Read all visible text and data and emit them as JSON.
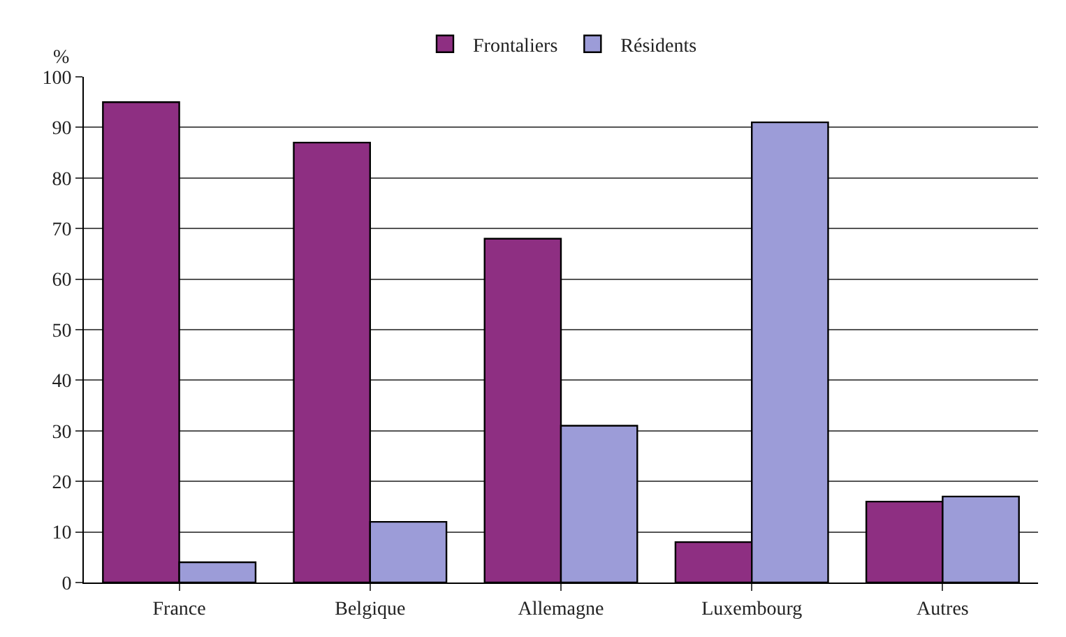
{
  "chart_data": {
    "type": "bar",
    "ylabel": "%",
    "categories": [
      "France",
      "Belgique",
      "Allemagne",
      "Luxembourg",
      "Autres"
    ],
    "series": [
      {
        "name": "Frontaliers",
        "color": "#8e2f82",
        "values": [
          95,
          87,
          68,
          8,
          16
        ]
      },
      {
        "name": "Résidents",
        "color": "#9c9cd8",
        "values": [
          4,
          12,
          31,
          91,
          17
        ]
      }
    ],
    "ylim": [
      0,
      100
    ],
    "yticks": [
      0,
      10,
      20,
      30,
      40,
      50,
      60,
      70,
      80,
      90,
      100
    ],
    "grid": "y",
    "legend": "top"
  }
}
